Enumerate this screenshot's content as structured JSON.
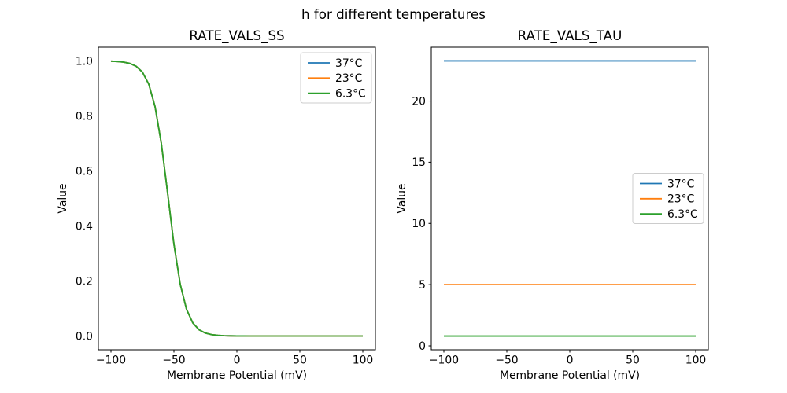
{
  "figure": {
    "suptitle": "h for different temperatures",
    "background": "#ffffff",
    "text_color": "#000000"
  },
  "chart_data": [
    {
      "id": "ss",
      "type": "line",
      "title": "RATE_VALS_SS",
      "xlabel": "Membrane Potential (mV)",
      "ylabel": "Value",
      "xlim": [
        -110,
        110
      ],
      "ylim": [
        -0.05,
        1.05
      ],
      "grid": false,
      "xticks": {
        "values": [
          -100,
          -50,
          0,
          50,
          100
        ],
        "labels": [
          "−100",
          "−50",
          "0",
          "50",
          "100"
        ]
      },
      "yticks": {
        "values": [
          0.0,
          0.2,
          0.4,
          0.6,
          0.8,
          1.0
        ],
        "labels": [
          "0.0",
          "0.2",
          "0.4",
          "0.6",
          "0.8",
          "1.0"
        ]
      },
      "x": [
        -100,
        -95,
        -90,
        -85,
        -80,
        -75,
        -70,
        -65,
        -60,
        -55,
        -50,
        -45,
        -40,
        -35,
        -30,
        -25,
        -20,
        -15,
        -10,
        -5,
        0,
        5,
        10,
        15,
        20,
        25,
        30,
        35,
        40,
        45,
        50,
        55,
        60,
        65,
        70,
        75,
        80,
        85,
        90,
        95,
        100
      ],
      "series": [
        {
          "name": "37°C",
          "color": "#1f77b4",
          "values": [
            0.9991,
            0.998,
            0.9958,
            0.9909,
            0.9806,
            0.9591,
            0.9157,
            0.8341,
            0.6997,
            0.5192,
            0.3336,
            0.1882,
            0.097,
            0.0474,
            0.0226,
            0.0106,
            0.0049,
            0.0023,
            0.0011,
            0.0005,
            0.0002,
            0.0001,
            0,
            0,
            0,
            0,
            0,
            0,
            0,
            0,
            0,
            0,
            0,
            0,
            0,
            0,
            0,
            0,
            0,
            0,
            0
          ]
        },
        {
          "name": "23°C",
          "color": "#ff7f0e",
          "values": [
            0.9991,
            0.998,
            0.9958,
            0.9909,
            0.9806,
            0.9591,
            0.9157,
            0.8341,
            0.6997,
            0.5192,
            0.3336,
            0.1882,
            0.097,
            0.0474,
            0.0226,
            0.0106,
            0.0049,
            0.0023,
            0.0011,
            0.0005,
            0.0002,
            0.0001,
            0,
            0,
            0,
            0,
            0,
            0,
            0,
            0,
            0,
            0,
            0,
            0,
            0,
            0,
            0,
            0,
            0,
            0,
            0
          ]
        },
        {
          "name": "6.3°C",
          "color": "#2ca02c",
          "values": [
            0.9991,
            0.998,
            0.9958,
            0.9909,
            0.9806,
            0.9591,
            0.9157,
            0.8341,
            0.6997,
            0.5192,
            0.3336,
            0.1882,
            0.097,
            0.0474,
            0.0226,
            0.0106,
            0.0049,
            0.0023,
            0.0011,
            0.0005,
            0.0002,
            0.0001,
            0,
            0,
            0,
            0,
            0,
            0,
            0,
            0,
            0,
            0,
            0,
            0,
            0,
            0,
            0,
            0,
            0,
            0,
            0
          ]
        }
      ],
      "legend": {
        "location": "upper right",
        "entries": [
          "37°C",
          "23°C",
          "6.3°C"
        ]
      },
      "note": "all three temperature curves overlap exactly; green (drawn last) is visible"
    },
    {
      "id": "tau",
      "type": "line",
      "title": "RATE_VALS_TAU",
      "xlabel": "Membrane Potential (mV)",
      "ylabel": "Value",
      "xlim": [
        -110,
        110
      ],
      "ylim": [
        -0.32,
        24.4
      ],
      "grid": false,
      "xticks": {
        "values": [
          -100,
          -50,
          0,
          50,
          100
        ],
        "labels": [
          "−100",
          "−50",
          "0",
          "50",
          "100"
        ]
      },
      "yticks": {
        "values": [
          0,
          5,
          10,
          15,
          20
        ],
        "labels": [
          "0",
          "5",
          "10",
          "15",
          "20"
        ]
      },
      "x": [
        -100,
        100
      ],
      "series": [
        {
          "name": "37°C",
          "color": "#1f77b4",
          "values": [
            23.28,
            23.28
          ]
        },
        {
          "name": "23°C",
          "color": "#ff7f0e",
          "values": [
            5.0,
            5.0
          ]
        },
        {
          "name": "6.3°C",
          "color": "#2ca02c",
          "values": [
            0.8,
            0.8
          ]
        }
      ],
      "legend": {
        "location": "center right",
        "entries": [
          "37°C",
          "23°C",
          "6.3°C"
        ]
      }
    }
  ]
}
